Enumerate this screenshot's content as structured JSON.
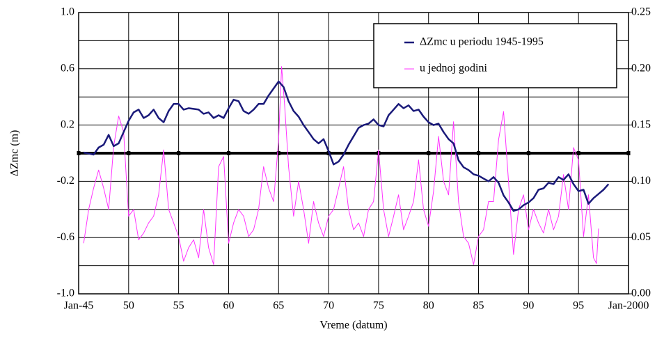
{
  "chart_data": {
    "type": "line",
    "xlabel": "Vreme (datum)",
    "ylabel": "ΔZmc (m)",
    "xlim": [
      1945,
      2000
    ],
    "xticks": [
      {
        "value": 1945,
        "label": "Jan-45"
      },
      1950,
      1955,
      1960,
      1965,
      1970,
      1975,
      1980,
      1985,
      1990,
      1995,
      {
        "value": 2000,
        "label": "Jan-2000"
      }
    ],
    "xtick_display": [
      null,
      "50",
      "55",
      "60",
      "65",
      "70",
      "75",
      "80",
      "85",
      "90",
      "95",
      null
    ],
    "ylim": [
      -1,
      1
    ],
    "yticks": [
      {
        "value": -1,
        "label": "-1.0"
      },
      -0.6,
      -0.2,
      0.2,
      0.6,
      {
        "value": 1,
        "label": "1.0"
      }
    ],
    "yminor": [
      -0.8,
      -0.4,
      0,
      0.4,
      0.8
    ],
    "y2lim": [
      0,
      0.25
    ],
    "y2ticks": [
      {
        "value": 0,
        "label": "0.00"
      },
      {
        "value": 0.05,
        "label": "0.05"
      },
      {
        "value": 0.1,
        "label": "0.10"
      },
      {
        "value": 0.15,
        "label": "0.15"
      },
      {
        "value": 0.2,
        "label": "0.20"
      },
      {
        "value": 0.25,
        "label": "0.25"
      }
    ],
    "grid": true,
    "zero_line": true,
    "legend": "upper right",
    "series": [
      {
        "name": "ΔZmc  u periodu 1945-1995",
        "color": "#1a1a7a",
        "axis": "y",
        "x": [
          1945.5,
          1946.5,
          1947,
          1947.5,
          1948,
          1948.5,
          1949,
          1949.5,
          1950,
          1950.5,
          1951,
          1951.5,
          1952,
          1952.5,
          1953,
          1953.5,
          1954,
          1954.5,
          1955,
          1955.5,
          1956,
          1957,
          1957.5,
          1958,
          1958.5,
          1959,
          1959.5,
          1960,
          1960.5,
          1961,
          1961.5,
          1962,
          1962.5,
          1963,
          1963.5,
          1964,
          1964.5,
          1965,
          1965.5,
          1966,
          1966.5,
          1967,
          1967.5,
          1968,
          1968.5,
          1969,
          1969.5,
          1970,
          1970.5,
          1971,
          1971.5,
          1972,
          1972.5,
          1973,
          1973.5,
          1974,
          1974.5,
          1975,
          1975.5,
          1976,
          1976.5,
          1977,
          1977.5,
          1978,
          1978.5,
          1979,
          1979.5,
          1980,
          1980.5,
          1981,
          1981.5,
          1982,
          1982.5,
          1983,
          1983.5,
          1984,
          1984.5,
          1985,
          1985.5,
          1986,
          1986.5,
          1987,
          1987.5,
          1988,
          1988.5,
          1989,
          1989.5,
          1990,
          1990.5,
          1991,
          1991.5,
          1992,
          1992.5,
          1993,
          1993.5,
          1994,
          1994.5,
          1995,
          1995.5,
          1996,
          1996.5,
          1997,
          1997.5,
          1998
        ],
        "values": [
          0.005,
          -0.01,
          0.04,
          0.06,
          0.13,
          0.05,
          0.07,
          0.15,
          0.23,
          0.29,
          0.31,
          0.25,
          0.27,
          0.31,
          0.25,
          0.22,
          0.3,
          0.35,
          0.35,
          0.31,
          0.32,
          0.31,
          0.28,
          0.29,
          0.25,
          0.27,
          0.25,
          0.32,
          0.38,
          0.37,
          0.3,
          0.28,
          0.31,
          0.35,
          0.35,
          0.41,
          0.46,
          0.51,
          0.47,
          0.37,
          0.3,
          0.26,
          0.2,
          0.15,
          0.1,
          0.07,
          0.1,
          0.015,
          -0.08,
          -0.06,
          -0.01,
          0.06,
          0.12,
          0.18,
          0.2,
          0.21,
          0.24,
          0.2,
          0.19,
          0.27,
          0.31,
          0.35,
          0.32,
          0.34,
          0.3,
          0.31,
          0.26,
          0.22,
          0.2,
          0.21,
          0.15,
          0.1,
          0.07,
          -0.05,
          -0.1,
          -0.12,
          -0.15,
          -0.16,
          -0.18,
          -0.2,
          -0.17,
          -0.21,
          -0.3,
          -0.35,
          -0.41,
          -0.4,
          -0.37,
          -0.35,
          -0.32,
          -0.26,
          -0.25,
          -0.21,
          -0.22,
          -0.17,
          -0.19,
          -0.15,
          -0.22,
          -0.27,
          -0.26,
          -0.36,
          -0.32,
          -0.29,
          -0.26,
          -0.22
        ]
      },
      {
        "name": "u jednoj godini",
        "color": "#ff33ff",
        "axis": "y2",
        "x": [
          1945.5,
          1946,
          1946.5,
          1947,
          1947.5,
          1948,
          1948.5,
          1949,
          1949.5,
          1950,
          1950.5,
          1951,
          1951.5,
          1952,
          1952.5,
          1953,
          1953.5,
          1954,
          1954.5,
          1955,
          1955.5,
          1956,
          1956.5,
          1957,
          1957.5,
          1958,
          1958.5,
          1959,
          1959.5,
          1960,
          1960.5,
          1961,
          1961.5,
          1962,
          1962.5,
          1963,
          1963.5,
          1964,
          1964.5,
          1965,
          1965.3,
          1965.6,
          1966,
          1966.5,
          1967,
          1967.5,
          1968,
          1968.5,
          1969,
          1969.5,
          1970,
          1970.5,
          1971,
          1971.5,
          1972,
          1972.5,
          1973,
          1973.5,
          1974,
          1974.5,
          1975,
          1975.5,
          1976,
          1976.5,
          1977,
          1977.5,
          1978,
          1978.5,
          1979,
          1979.5,
          1980,
          1980.5,
          1981,
          1981.5,
          1982,
          1982.5,
          1983,
          1983.5,
          1984,
          1984.5,
          1985,
          1985.5,
          1986,
          1986.5,
          1987,
          1987.5,
          1988,
          1988.5,
          1989,
          1989.5,
          1990,
          1990.5,
          1991,
          1991.5,
          1992,
          1992.5,
          1993,
          1993.5,
          1994,
          1994.5,
          1995,
          1995.5,
          1996,
          1996.5,
          1996.8,
          1997
        ],
        "values": [
          0.045,
          0.075,
          0.094,
          0.11,
          0.094,
          0.075,
          0.131,
          0.158,
          0.144,
          0.069,
          0.075,
          0.048,
          0.054,
          0.063,
          0.069,
          0.088,
          0.128,
          0.075,
          0.063,
          0.051,
          0.029,
          0.041,
          0.048,
          0.032,
          0.075,
          0.041,
          0.026,
          0.113,
          0.122,
          0.045,
          0.063,
          0.075,
          0.069,
          0.051,
          0.057,
          0.075,
          0.113,
          0.094,
          0.082,
          0.137,
          0.202,
          0.168,
          0.113,
          0.069,
          0.1,
          0.075,
          0.045,
          0.082,
          0.063,
          0.051,
          0.069,
          0.075,
          0.094,
          0.113,
          0.075,
          0.057,
          0.063,
          0.051,
          0.075,
          0.082,
          0.128,
          0.075,
          0.051,
          0.069,
          0.088,
          0.057,
          0.069,
          0.082,
          0.119,
          0.075,
          0.06,
          0.091,
          0.14,
          0.1,
          0.088,
          0.153,
          0.082,
          0.051,
          0.045,
          0.026,
          0.051,
          0.057,
          0.082,
          0.082,
          0.137,
          0.162,
          0.1,
          0.035,
          0.075,
          0.088,
          0.057,
          0.075,
          0.063,
          0.054,
          0.075,
          0.057,
          0.069,
          0.106,
          0.075,
          0.13,
          0.119,
          0.051,
          0.088,
          0.032,
          0.027,
          0.058
        ]
      }
    ]
  }
}
